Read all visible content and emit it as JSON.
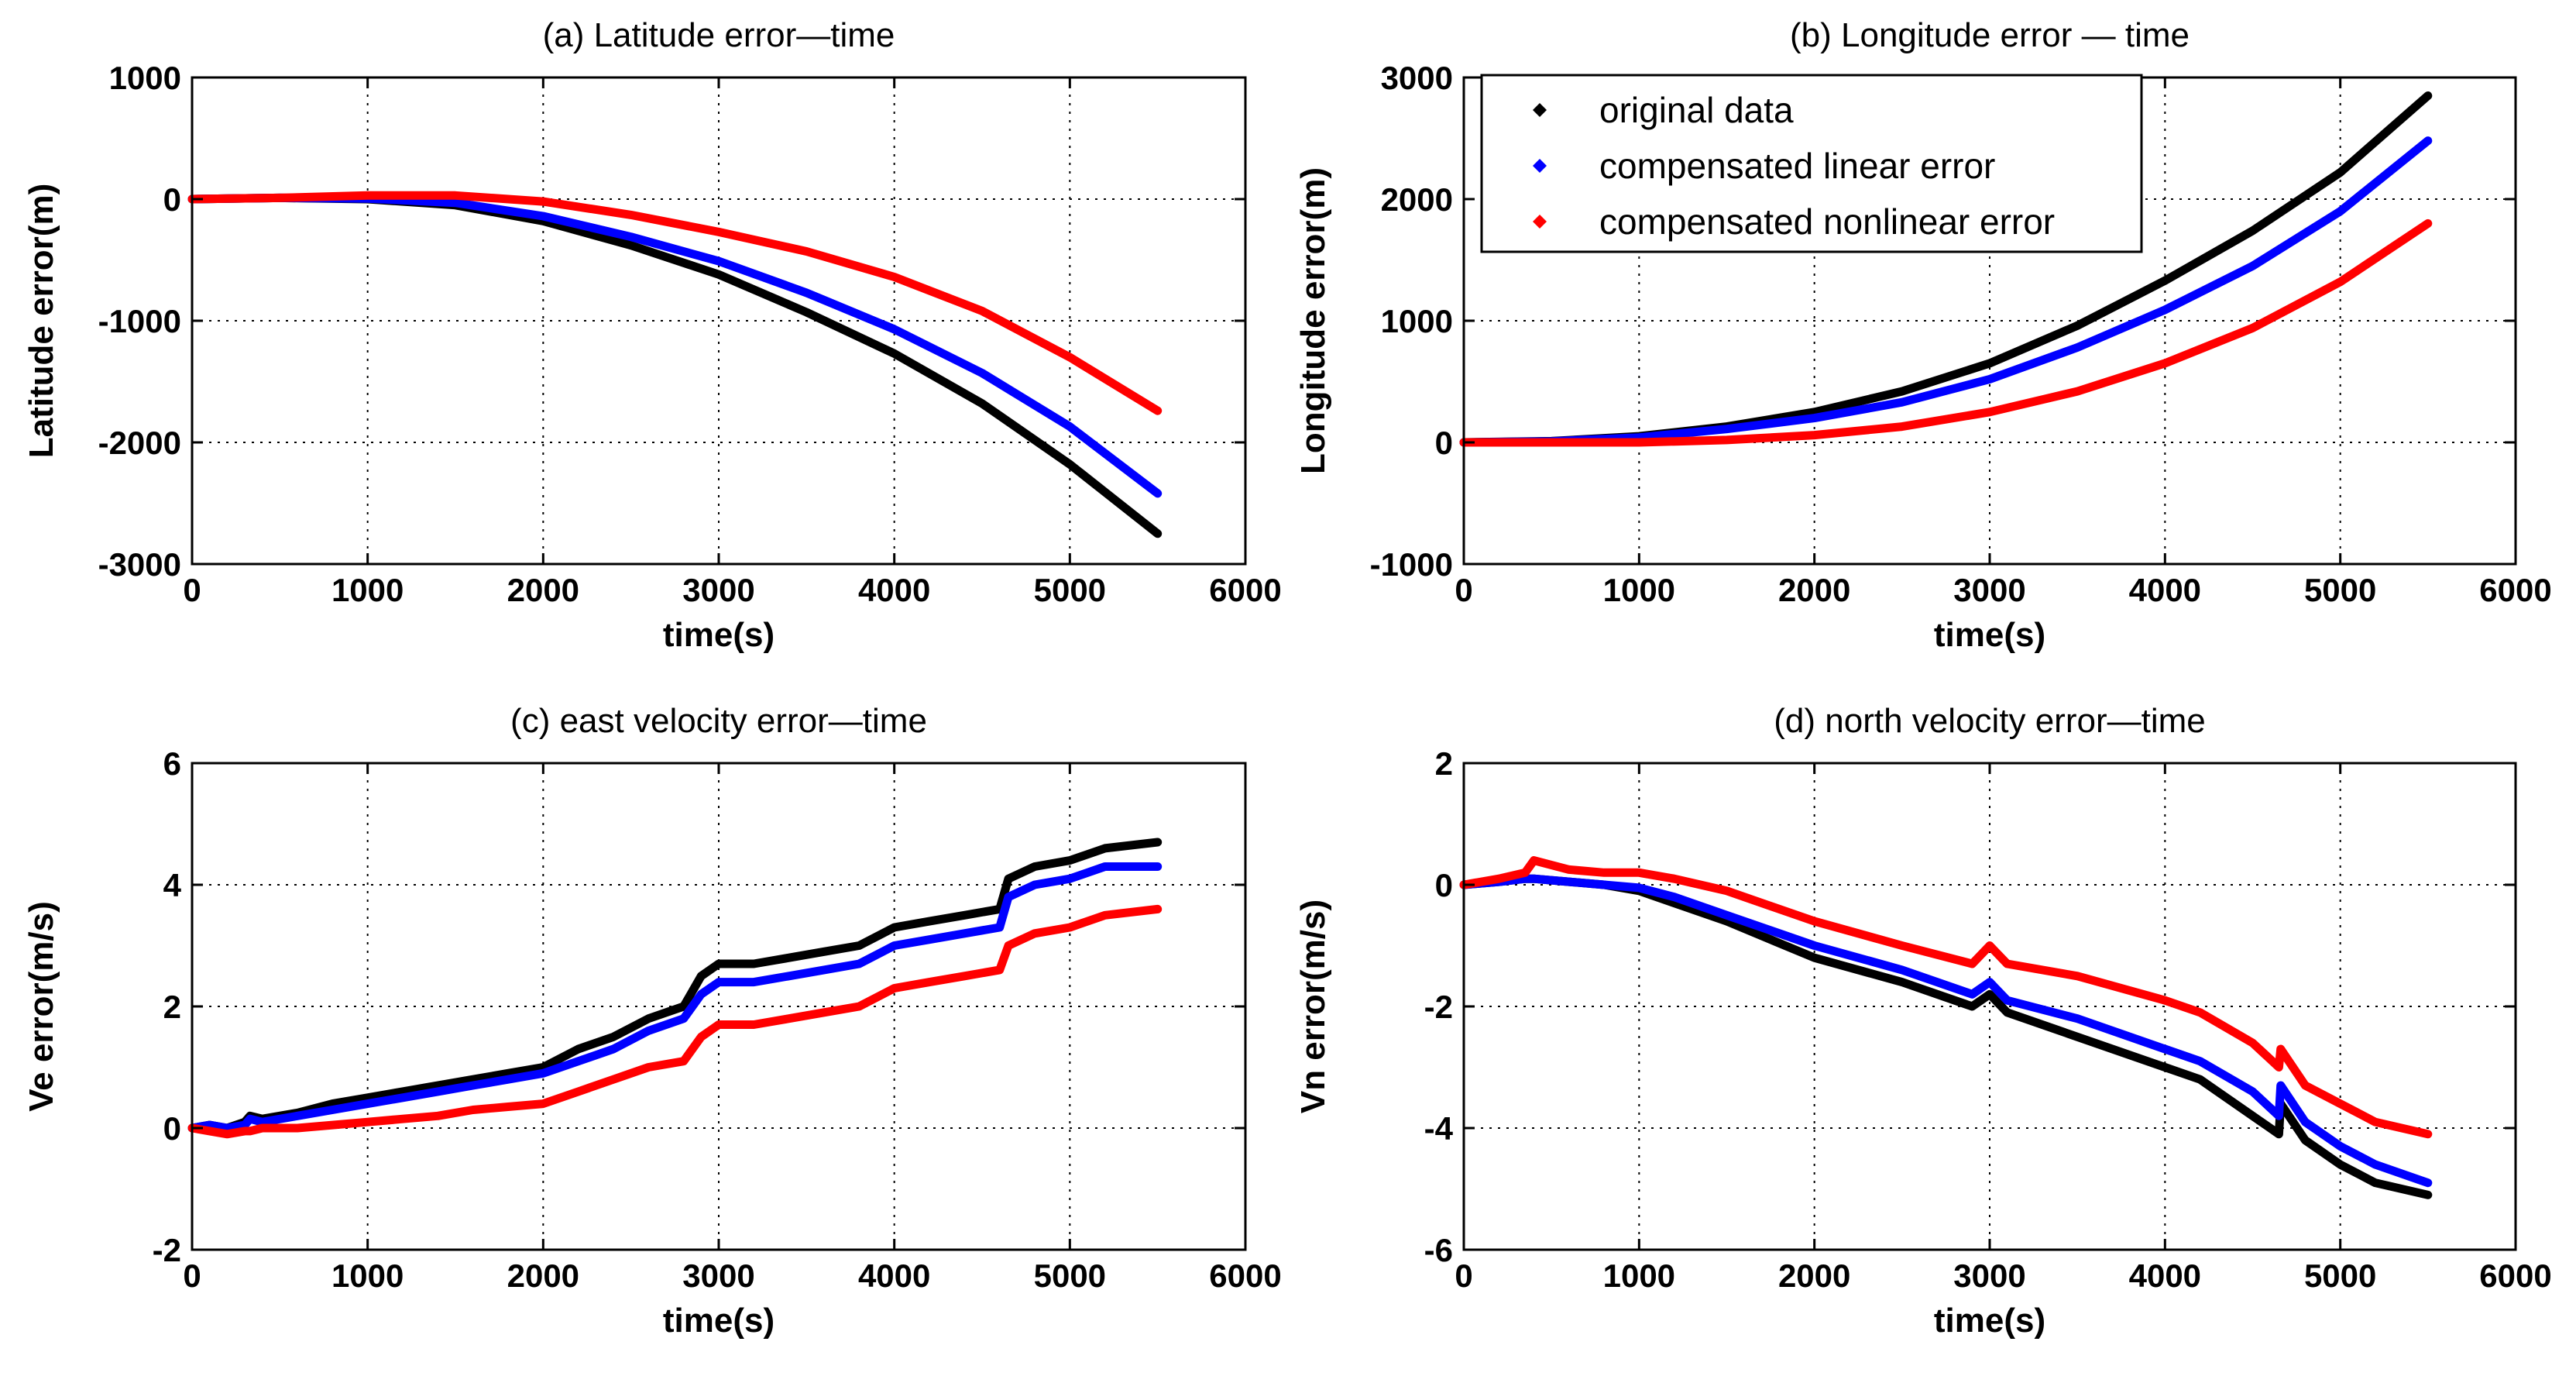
{
  "chart_data": [
    {
      "id": "a",
      "type": "line",
      "title": "(a) Latitude error—time",
      "xlabel": "time(s)",
      "ylabel": "Latitude error(m)",
      "xlim": [
        0,
        6000
      ],
      "ylim": [
        -3000,
        1000
      ],
      "xticks": [
        0,
        1000,
        2000,
        3000,
        4000,
        5000,
        6000
      ],
      "yticks": [
        -3000,
        -2000,
        -1000,
        0,
        1000
      ],
      "grid": true,
      "x": [
        0,
        500,
        1000,
        1500,
        2000,
        2500,
        3000,
        3500,
        4000,
        4500,
        5000,
        5500
      ],
      "series": [
        {
          "name": "original data",
          "color": "#000000",
          "values": [
            0,
            10,
            0,
            -50,
            -180,
            -380,
            -620,
            -930,
            -1270,
            -1680,
            -2180,
            -2750
          ]
        },
        {
          "name": "compensated linear error",
          "color": "#0000ff",
          "values": [
            0,
            10,
            5,
            -30,
            -140,
            -310,
            -510,
            -770,
            -1070,
            -1430,
            -1870,
            -2420
          ]
        },
        {
          "name": "compensated nonlinear error",
          "color": "#ff0000",
          "values": [
            0,
            10,
            30,
            30,
            -20,
            -130,
            -270,
            -430,
            -640,
            -920,
            -1300,
            -1740
          ]
        }
      ]
    },
    {
      "id": "b",
      "type": "line",
      "title": "(b) Longitude error — time",
      "xlabel": "time(s)",
      "ylabel": "Longitude error(m)",
      "xlim": [
        0,
        6000
      ],
      "ylim": [
        -1000,
        3000
      ],
      "xticks": [
        0,
        1000,
        2000,
        3000,
        4000,
        5000,
        6000
      ],
      "yticks": [
        -1000,
        0,
        1000,
        2000,
        3000
      ],
      "grid": true,
      "legend": "top-left",
      "x": [
        0,
        500,
        1000,
        1500,
        2000,
        2500,
        3000,
        3500,
        4000,
        4500,
        5000,
        5500
      ],
      "series": [
        {
          "name": "original data",
          "color": "#000000",
          "values": [
            0,
            10,
            50,
            130,
            250,
            420,
            650,
            960,
            1330,
            1740,
            2220,
            2850
          ]
        },
        {
          "name": "compensated linear error",
          "color": "#0000ff",
          "values": [
            0,
            8,
            40,
            110,
            200,
            330,
            520,
            780,
            1090,
            1450,
            1900,
            2480
          ]
        },
        {
          "name": "compensated nonlinear error",
          "color": "#ff0000",
          "values": [
            0,
            0,
            0,
            20,
            60,
            130,
            250,
            420,
            650,
            940,
            1320,
            1800
          ]
        }
      ]
    },
    {
      "id": "c",
      "type": "line",
      "title": "(c) east velocity error—time",
      "xlabel": "time(s)",
      "ylabel": "Ve error(m/s)",
      "xlim": [
        0,
        6000
      ],
      "ylim": [
        -2,
        6
      ],
      "xticks": [
        0,
        1000,
        2000,
        3000,
        4000,
        5000,
        6000
      ],
      "yticks": [
        -2,
        0,
        2,
        4,
        6
      ],
      "grid": true,
      "x": [
        0,
        100,
        200,
        300,
        330,
        400,
        600,
        800,
        1000,
        1200,
        1400,
        1600,
        1800,
        2000,
        2200,
        2400,
        2600,
        2800,
        2900,
        3000,
        3200,
        3400,
        3600,
        3800,
        4000,
        4200,
        4400,
        4600,
        4650,
        4800,
        5000,
        5200,
        5500
      ],
      "series": [
        {
          "name": "original data",
          "color": "#000000",
          "values": [
            0,
            0.05,
            0.0,
            0.1,
            0.2,
            0.15,
            0.25,
            0.4,
            0.5,
            0.6,
            0.7,
            0.8,
            0.9,
            1.0,
            1.3,
            1.5,
            1.8,
            2.0,
            2.5,
            2.7,
            2.7,
            2.8,
            2.9,
            3.0,
            3.3,
            3.4,
            3.5,
            3.6,
            4.1,
            4.3,
            4.4,
            4.6,
            4.7
          ]
        },
        {
          "name": "compensated linear error",
          "color": "#0000ff",
          "values": [
            0,
            0.05,
            0.0,
            0.05,
            0.15,
            0.1,
            0.2,
            0.3,
            0.4,
            0.5,
            0.6,
            0.7,
            0.8,
            0.9,
            1.1,
            1.3,
            1.6,
            1.8,
            2.2,
            2.4,
            2.4,
            2.5,
            2.6,
            2.7,
            3.0,
            3.1,
            3.2,
            3.3,
            3.8,
            4.0,
            4.1,
            4.3,
            4.3
          ]
        },
        {
          "name": "compensated nonlinear error",
          "color": "#ff0000",
          "values": [
            0,
            -0.05,
            -0.1,
            -0.05,
            -0.05,
            0.0,
            0.0,
            0.05,
            0.1,
            0.15,
            0.2,
            0.3,
            0.35,
            0.4,
            0.6,
            0.8,
            1.0,
            1.1,
            1.5,
            1.7,
            1.7,
            1.8,
            1.9,
            2.0,
            2.3,
            2.4,
            2.5,
            2.6,
            3.0,
            3.2,
            3.3,
            3.5,
            3.6
          ]
        }
      ]
    },
    {
      "id": "d",
      "type": "line",
      "title": "(d) north velocity error—time",
      "xlabel": "time(s)",
      "ylabel": "Vn error(m/s)",
      "xlim": [
        0,
        6000
      ],
      "ylim": [
        -6,
        2
      ],
      "xticks": [
        0,
        1000,
        2000,
        3000,
        4000,
        5000,
        6000
      ],
      "yticks": [
        -6,
        -4,
        -2,
        0,
        2
      ],
      "grid": true,
      "x": [
        0,
        200,
        350,
        400,
        600,
        800,
        1000,
        1200,
        1500,
        2000,
        2500,
        2900,
        3000,
        3100,
        3500,
        4000,
        4200,
        4500,
        4650,
        4660,
        4800,
        5000,
        5200,
        5500
      ],
      "series": [
        {
          "name": "original data",
          "color": "#000000",
          "values": [
            0,
            0.05,
            0.1,
            0.1,
            0.05,
            0.0,
            -0.1,
            -0.3,
            -0.6,
            -1.2,
            -1.6,
            -2.0,
            -1.8,
            -2.1,
            -2.5,
            -3.0,
            -3.2,
            -3.8,
            -4.1,
            -3.6,
            -4.2,
            -4.6,
            -4.9,
            -5.1
          ]
        },
        {
          "name": "compensated linear error",
          "color": "#0000ff",
          "values": [
            0,
            0.05,
            0.1,
            0.1,
            0.05,
            0.0,
            -0.05,
            -0.2,
            -0.5,
            -1.0,
            -1.4,
            -1.8,
            -1.6,
            -1.9,
            -2.2,
            -2.7,
            -2.9,
            -3.4,
            -3.8,
            -3.3,
            -3.9,
            -4.3,
            -4.6,
            -4.9
          ]
        },
        {
          "name": "compensated nonlinear error",
          "color": "#ff0000",
          "values": [
            0,
            0.1,
            0.2,
            0.4,
            0.25,
            0.2,
            0.2,
            0.1,
            -0.1,
            -0.6,
            -1.0,
            -1.3,
            -1.0,
            -1.3,
            -1.5,
            -1.9,
            -2.1,
            -2.6,
            -3.0,
            -2.7,
            -3.3,
            -3.6,
            -3.9,
            -4.1
          ]
        }
      ]
    }
  ]
}
